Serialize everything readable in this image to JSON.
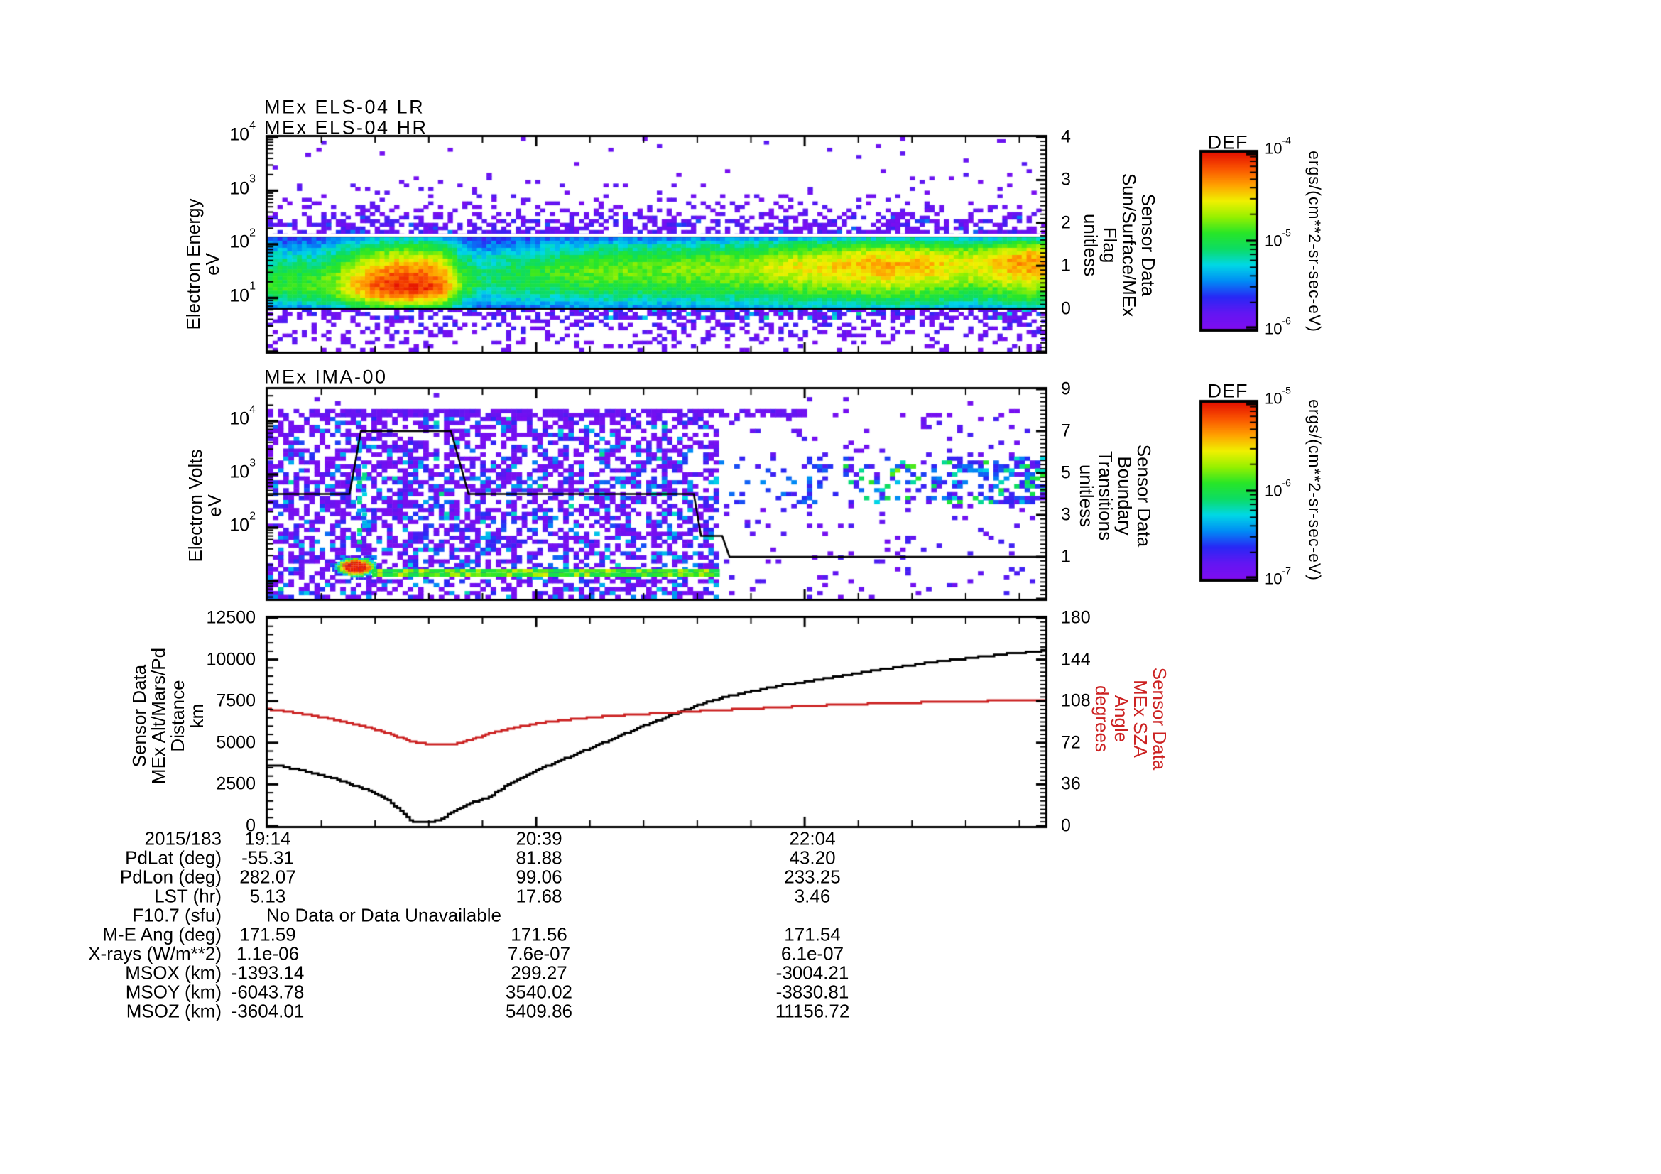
{
  "page": {
    "background": "#ffffff"
  },
  "colors": {
    "accent_red": "#cc2222",
    "line_black": "#000000",
    "colormap": [
      "#800cf0",
      "#6216f2",
      "#2828f5",
      "#008cf5",
      "#00d8e6",
      "#0cdc64",
      "#28e628",
      "#96f000",
      "#f0f000",
      "#ffa000",
      "#fa5500",
      "#e61400"
    ]
  },
  "time_axis": {
    "date": "2015/183",
    "tick_labels": [
      "19:14",
      "20:39",
      "22:04"
    ],
    "tick_minutes": [
      0,
      85,
      170
    ],
    "minutes_per_minor": 17,
    "total_minutes": 246.2
  },
  "colorbars": [
    {
      "title": "DEF",
      "tick_exponents": [
        "-4",
        "-5",
        "-6"
      ],
      "unit": "ergs/(cm**2-sr-sec-eV)"
    },
    {
      "title": "DEF",
      "tick_exponents": [
        "-5",
        "-6",
        "-7"
      ],
      "unit": "ergs/(cm**2-sr-sec-eV)"
    }
  ],
  "chart_data": [
    {
      "type": "heatmap",
      "id": "els",
      "titles": [
        "MEx ELS-04 LR",
        "MEx ELS-04 HR"
      ],
      "ylabel_lines": [
        "Electron Energy",
        "eV"
      ],
      "yaxis": {
        "scale": "log",
        "tick_exponents": [
          "4",
          "3",
          "2",
          "1"
        ],
        "range_log10": [
          0,
          4
        ]
      },
      "right_axis": {
        "label_lines": [
          "Sensor Data",
          "Sun/Surface/MEx",
          "Flag",
          "unitless"
        ],
        "ticks": [
          "4",
          "3",
          "2",
          "1",
          "0"
        ],
        "range": [
          -1,
          4
        ]
      },
      "flag_series_value": 0,
      "separator_line_log10ev": 2.15,
      "spectrogram": {
        "seed": 7,
        "band_log10ev": [
          0.82,
          2.14
        ],
        "peak_log10ev_keypoints": [
          [
            0,
            1.22
          ],
          [
            28,
            1.19
          ],
          [
            55,
            1.2
          ],
          [
            73,
            1.36
          ],
          [
            95,
            1.46
          ],
          [
            129,
            1.52
          ],
          [
            163,
            1.58
          ],
          [
            208,
            1.63
          ],
          [
            246,
            1.67
          ]
        ],
        "intensity_keypoints": [
          [
            0,
            0.52
          ],
          [
            14,
            0.55
          ],
          [
            21,
            0.62
          ],
          [
            28,
            0.78
          ],
          [
            34,
            0.9
          ],
          [
            41,
            0.97
          ],
          [
            50,
            0.96
          ],
          [
            56,
            0.85
          ],
          [
            61,
            0.6
          ],
          [
            68,
            0.45
          ],
          [
            77,
            0.5
          ],
          [
            91,
            0.55
          ],
          [
            106,
            0.6
          ],
          [
            122,
            0.6
          ],
          [
            138,
            0.62
          ],
          [
            154,
            0.66
          ],
          [
            167,
            0.72
          ],
          [
            181,
            0.76
          ],
          [
            194,
            0.8
          ],
          [
            208,
            0.78
          ],
          [
            219,
            0.72
          ],
          [
            228,
            0.73
          ],
          [
            235,
            0.8
          ],
          [
            241,
            0.84
          ],
          [
            246,
            0.8
          ]
        ]
      },
      "colorbar_index": 0
    },
    {
      "type": "heatmap",
      "id": "ima",
      "title": "MEx IMA-00",
      "ylabel_lines": [
        "Electron Volts",
        "eV"
      ],
      "yaxis": {
        "scale": "log",
        "tick_exponents": [
          "4",
          "3",
          "2"
        ],
        "range_log10": [
          0.67,
          4.6
        ]
      },
      "right_axis": {
        "label_lines": [
          "Sensor Data",
          "Boundary",
          "Transitions",
          "unitless"
        ],
        "ticks": [
          "9",
          "7",
          "5",
          "3",
          "1"
        ],
        "range": [
          -1,
          9
        ]
      },
      "boundary_series": {
        "t_min": [
          0,
          25.9,
          29.5,
          58.0,
          63.6,
          134.9,
          137.2,
          143.9,
          146.2,
          246.2
        ],
        "value": [
          4,
          4,
          7,
          7,
          4,
          4,
          2,
          2,
          1,
          1
        ]
      },
      "spectrogram": {
        "seed": 13,
        "dense_region_t": [
          0,
          142
        ],
        "top_dashed_row_t": [
          0,
          170.5
        ],
        "blob": {
          "t_center": 27.5,
          "log10ev_center": 1.28,
          "t_span": [
            21.8,
            33.5
          ]
        },
        "tail": {
          "t_span": [
            33.5,
            142
          ],
          "log10ev": [
            1.08,
            1.23
          ]
        },
        "right_band_log10ev": [
          2.4,
          3.4
        ]
      },
      "colorbar_index": 1
    },
    {
      "type": "line",
      "id": "ephemeris",
      "left_axis": {
        "label_lines": [
          "Sensor Data",
          "MEx Alt/Mars/Pd",
          "Distance",
          "km"
        ],
        "ticks": [
          "0",
          "2500",
          "5000",
          "7500",
          "10000",
          "12500"
        ],
        "range": [
          0,
          12500
        ]
      },
      "right_axis": {
        "label_lines": [
          "Sensor Data",
          "MEx SZA",
          "Angle",
          "degrees"
        ],
        "ticks": [
          "0",
          "36",
          "72",
          "108",
          "144",
          "180"
        ],
        "range": [
          0,
          180
        ],
        "color": "#cc2222"
      },
      "series": [
        {
          "name": "MEx Alt/Mars/Pd Distance",
          "axis": "left",
          "color": "#000000",
          "t_min": [
            0,
            5,
            12,
            18,
            24,
            30,
            34,
            38,
            41,
            43,
            44.5,
            46,
            48,
            51,
            53,
            56,
            59,
            63,
            67,
            70,
            74,
            79,
            86,
            92,
            97,
            103,
            109,
            115,
            121,
            127,
            133,
            138,
            144,
            150,
            155,
            163,
            172,
            181,
            190,
            199,
            208,
            217,
            226,
            234,
            241,
            246
          ],
          "values": [
            3670,
            3560,
            3290,
            3010,
            2650,
            2250,
            1950,
            1520,
            1080,
            700,
            420,
            280,
            250,
            240,
            300,
            560,
            900,
            1250,
            1600,
            1750,
            2250,
            2800,
            3430,
            3900,
            4300,
            4750,
            5230,
            5720,
            6170,
            6620,
            7030,
            7400,
            7720,
            7980,
            8170,
            8460,
            8730,
            9020,
            9290,
            9550,
            9780,
            9990,
            10180,
            10340,
            10460,
            10550
          ]
        },
        {
          "name": "MEx SZA Angle",
          "axis": "right",
          "color": "#cc2222",
          "t_min": [
            0,
            6,
            12,
            18,
            24,
            30,
            34,
            38,
            41,
            44,
            46,
            48,
            51,
            54,
            58,
            61,
            64,
            67,
            70,
            74,
            78,
            82,
            86,
            91,
            96,
            103,
            109,
            115,
            121,
            128,
            134,
            139,
            146,
            155,
            163,
            172,
            182,
            192,
            202,
            212,
            222,
            232,
            241,
            246
          ],
          "values": [
            100.8,
            99,
            96.6,
            93.6,
            90.2,
            86.4,
            83.3,
            80,
            77.2,
            74.2,
            72.6,
            71.6,
            71,
            70.8,
            70.8,
            72,
            74.6,
            77.3,
            79.9,
            82.6,
            85,
            87.2,
            89,
            90.8,
            92.2,
            94,
            95.3,
            96.3,
            97.1,
            98.1,
            99,
            99.9,
            100.7,
            101.8,
            102.9,
            104,
            105,
            105.9,
            106.6,
            107.3,
            107.9,
            108.3,
            108.6,
            108.8
          ]
        }
      ]
    }
  ],
  "table": {
    "rows": [
      {
        "label": "2015/183",
        "values": [
          "19:14",
          "20:39",
          "22:04"
        ]
      },
      {
        "label": "PdLat (deg)",
        "values": [
          "-55.31",
          "81.88",
          "43.20"
        ]
      },
      {
        "label": "PdLon (deg)",
        "values": [
          "282.07",
          "99.06",
          "233.25"
        ]
      },
      {
        "label": "LST (hr)",
        "values": [
          "5.13",
          "17.68",
          "3.46"
        ]
      },
      {
        "label": "F10.7 (sfu)",
        "values": [],
        "note": "No Data or Data Unavailable"
      },
      {
        "label": "M-E Ang (deg)",
        "values": [
          "171.59",
          "171.56",
          "171.54"
        ]
      },
      {
        "label": "X-rays (W/m**2)",
        "values": [
          "1.1e-06",
          "7.6e-07",
          "6.1e-07"
        ]
      },
      {
        "label": "MSOX (km)",
        "values": [
          "-1393.14",
          "299.27",
          "-3004.21"
        ]
      },
      {
        "label": "MSOY (km)",
        "values": [
          "-6043.78",
          "3540.02",
          "-3830.81"
        ]
      },
      {
        "label": "MSOZ (km)",
        "values": [
          "-3604.01",
          "5409.86",
          "11156.72"
        ]
      }
    ]
  }
}
